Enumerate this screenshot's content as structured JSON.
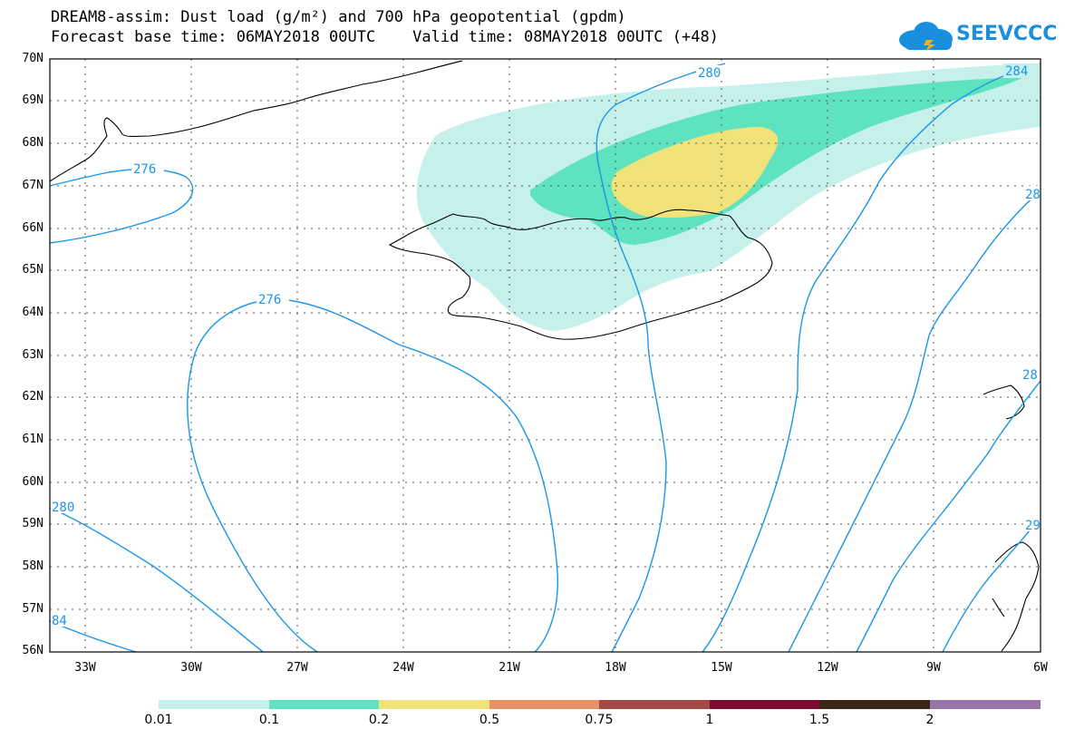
{
  "header": {
    "title_line1": "DREAM8-assim: Dust load (g/m²) and 700 hPa geopotential (gpdm)",
    "title_line2": "Forecast base time: 06MAY2018 00UTC    Valid time: 08MAY2018 00UTC (+48)",
    "logo_text": "SEEVCCC"
  },
  "map": {
    "lat_labels": [
      "70N",
      "69N",
      "68N",
      "67N",
      "66N",
      "65N",
      "64N",
      "63N",
      "62N",
      "61N",
      "60N",
      "59N",
      "58N",
      "57N",
      "56N"
    ],
    "lon_labels": [
      "33W",
      "30W",
      "27W",
      "24W",
      "21W",
      "18W",
      "15W",
      "12W",
      "9W",
      "6W"
    ],
    "contour_labels": [
      "276",
      "276",
      "280",
      "284",
      "280",
      "84",
      "28",
      "29",
      "28"
    ],
    "dust_colors": {
      "level1": "#c5f1ea",
      "level2": "#5fe2c0",
      "level3": "#f2e27a"
    },
    "contour_color": "#1a96e8",
    "coastline_color": "#000000"
  },
  "legend": {
    "labels": [
      "0.01",
      "0.1",
      "0.2",
      "0.5",
      "0.75",
      "1",
      "1.5",
      "2"
    ],
    "colors": [
      "#c5f1ea",
      "#5fe2c0",
      "#f2e27a",
      "#e6906a",
      "#a24a46",
      "#7a0a30",
      "#3a2614",
      "#9a74a8"
    ]
  }
}
